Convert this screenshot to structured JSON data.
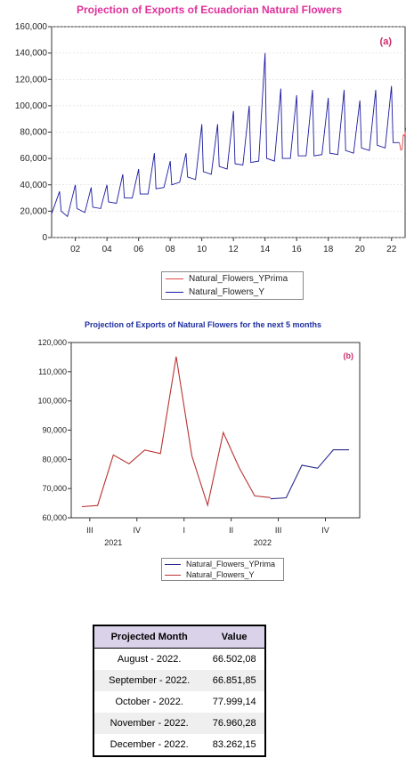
{
  "chart_data": [
    {
      "type": "line",
      "title": "Projection of Exports of Ecuadorian Natural Flowers",
      "panel_label": "(a)",
      "ylim": [
        0,
        160000
      ],
      "y_ticks": [
        "0",
        "20,000",
        "40,000",
        "60,000",
        "80,000",
        "100,000",
        "120,000",
        "140,000",
        "160,000"
      ],
      "y_tick_values": [
        0,
        20000,
        40000,
        60000,
        80000,
        100000,
        120000,
        140000,
        160000
      ],
      "xlim": [
        2000.5,
        2022.9167
      ],
      "x_ticks": [
        "02",
        "04",
        "06",
        "08",
        "10",
        "12",
        "14",
        "16",
        "18",
        "20",
        "22"
      ],
      "x_tick_values": [
        2002,
        2004,
        2006,
        2008,
        2010,
        2012,
        2014,
        2016,
        2018,
        2020,
        2022
      ],
      "series": [
        {
          "name": "Natural_Flowers_YPrima",
          "color": "#e04848",
          "x": [
            2022.5,
            2022.5833,
            2022.6667,
            2022.75,
            2022.8333,
            2022.9167
          ],
          "values": [
            72000,
            66502,
            66852,
            77999,
            76960,
            83262
          ]
        },
        {
          "name": "Natural_Flowers_Y",
          "color": "#1a1aa0",
          "x": [
            2000.5,
            2001.0,
            2001.1,
            2001.5,
            2002.0,
            2002.1,
            2002.6,
            2003.0,
            2003.1,
            2003.6,
            2004.0,
            2004.1,
            2004.6,
            2005.0,
            2005.1,
            2005.6,
            2006.0,
            2006.1,
            2006.6,
            2007.0,
            2007.1,
            2007.6,
            2008.0,
            2008.1,
            2008.6,
            2009.0,
            2009.1,
            2009.6,
            2010.0,
            2010.1,
            2010.6,
            2011.0,
            2011.1,
            2011.6,
            2012.0,
            2012.1,
            2012.6,
            2013.0,
            2013.1,
            2013.6,
            2014.0,
            2014.1,
            2014.6,
            2015.0,
            2015.1,
            2015.6,
            2016.0,
            2016.1,
            2016.6,
            2017.0,
            2017.1,
            2017.6,
            2018.0,
            2018.1,
            2018.6,
            2019.0,
            2019.1,
            2019.6,
            2020.0,
            2020.1,
            2020.6,
            2021.0,
            2021.1,
            2021.6,
            2022.0,
            2022.1,
            2022.5
          ],
          "values": [
            18000,
            35000,
            20000,
            16000,
            40000,
            22000,
            19000,
            38000,
            23000,
            22000,
            40000,
            27000,
            26000,
            48000,
            30000,
            30000,
            52000,
            33000,
            33000,
            64000,
            37000,
            38000,
            58000,
            40000,
            42000,
            64000,
            46000,
            44000,
            86000,
            50000,
            48000,
            86000,
            54000,
            52000,
            96000,
            56000,
            55000,
            100000,
            57000,
            58000,
            140000,
            60000,
            58000,
            113000,
            60000,
            60000,
            108000,
            62000,
            62000,
            112000,
            62000,
            63000,
            106000,
            64000,
            63000,
            112000,
            66000,
            64000,
            104000,
            68000,
            66000,
            112000,
            70000,
            68000,
            115000,
            72000,
            72000
          ]
        }
      ],
      "legend": "bottom-center"
    },
    {
      "type": "line",
      "title": "Projection of Exports of Natural Flowers for the next 5 months",
      "panel_label": "(b)",
      "ylim": [
        60000,
        120000
      ],
      "y_ticks": [
        "60,000",
        "70,000",
        "80,000",
        "90,000",
        "100,000",
        "110,000",
        "120,000"
      ],
      "y_tick_values": [
        60000,
        70000,
        80000,
        90000,
        100000,
        110000,
        120000
      ],
      "x_ticks": [
        "III",
        "IV",
        "I",
        "II",
        "III",
        "IV"
      ],
      "x_tick_index": [
        0.5,
        3.5,
        6.5,
        9.5,
        12.5,
        15.5
      ],
      "x_year_labels": [
        "2021",
        "2022"
      ],
      "x_year_index": [
        2,
        11.5
      ],
      "series": [
        {
          "name": "Natural_Flowers_Y",
          "color": "#b83232",
          "x": [
            0,
            1,
            2,
            3,
            4,
            5,
            6,
            7,
            8,
            9,
            10,
            11,
            12
          ],
          "values": [
            63800,
            64200,
            81500,
            78500,
            83200,
            82000,
            115200,
            81200,
            64300,
            89200,
            77200,
            67500,
            66900
          ]
        },
        {
          "name": "Natural_Flowers_YPrima",
          "color": "#2a2a90",
          "x": [
            12,
            13,
            14,
            15,
            16,
            17
          ],
          "values": [
            66502,
            66852,
            77999,
            76960,
            83262,
            83262
          ]
        }
      ],
      "legend": "bottom-center"
    }
  ],
  "legend_a": [
    {
      "label": "Natural_Flowers_YPrima",
      "color": "#e04848"
    },
    {
      "label": "Natural_Flowers_Y",
      "color": "#1a1aa0"
    }
  ],
  "legend_b": [
    {
      "label": "Natural_Flowers_YPrima",
      "color": "#2a2a90"
    },
    {
      "label": "Natural_Flowers_Y",
      "color": "#b83232"
    }
  ],
  "table": {
    "headers": [
      "Projected Month",
      "Value"
    ],
    "rows": [
      [
        "August - 2022.",
        "66.502,08"
      ],
      [
        "September - 2022.",
        "66.851,85"
      ],
      [
        "October - 2022.",
        "77.999,14"
      ],
      [
        "November - 2022.",
        "76.960,28"
      ],
      [
        "December - 2022.",
        "83.262,15"
      ]
    ]
  }
}
